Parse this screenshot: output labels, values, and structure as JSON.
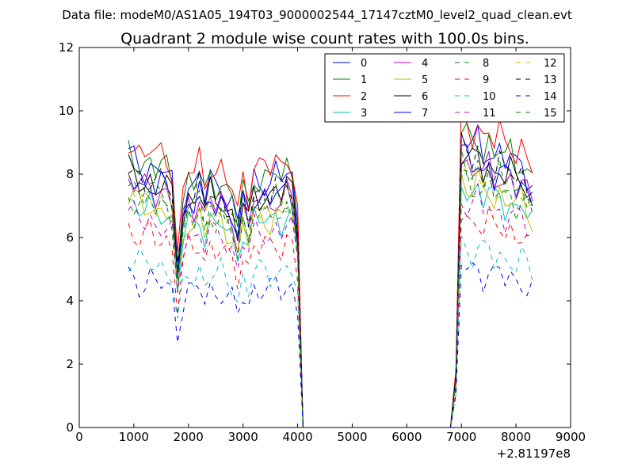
{
  "chart_data": {
    "type": "line",
    "suptitle": "Data file: modeM0/AS1A05_194T03_9000002544_17147cztM0_level2_quad_clean.evt",
    "title": "Quadrant 2 module wise count rates with 100.0s bins.",
    "xlabel": "",
    "ylabel": "",
    "x_offset_label": "+2.81197e8",
    "xlim": [
      0,
      9000
    ],
    "ylim": [
      0,
      12
    ],
    "xticks": [
      0,
      1000,
      2000,
      3000,
      4000,
      5000,
      6000,
      7000,
      8000,
      9000
    ],
    "yticks": [
      0,
      2,
      4,
      6,
      8,
      10,
      12
    ],
    "x_tick_labels": [
      "0",
      "1000",
      "2000",
      "3000",
      "4000",
      "5000",
      "6000",
      "7000",
      "8000",
      "9000"
    ],
    "y_tick_labels": [
      "0",
      "2",
      "4",
      "6",
      "8",
      "10",
      "12"
    ],
    "grid": false,
    "legend_position": "top-right",
    "legend_columns": 4,
    "x": [
      900,
      1000,
      1100,
      1200,
      1300,
      1400,
      1500,
      1600,
      1700,
      1800,
      1900,
      2000,
      2100,
      2200,
      2300,
      2400,
      2500,
      2600,
      2700,
      2800,
      2900,
      3000,
      3100,
      3200,
      3300,
      3400,
      3500,
      3600,
      3700,
      3800,
      3900,
      4000,
      4100,
      4200,
      4300,
      4400,
      4500,
      4600,
      4700,
      4800,
      4900,
      5000,
      5100,
      5200,
      5300,
      5400,
      5500,
      5600,
      5700,
      5800,
      5900,
      6000,
      6100,
      6200,
      6300,
      6400,
      6500,
      6600,
      6700,
      6800,
      6900,
      7000,
      7100,
      7200,
      7300,
      7400,
      7500,
      7600,
      7700,
      7800,
      7900,
      8000,
      8100,
      8200,
      8300
    ],
    "profile": [
      1.0,
      0.98,
      0.96,
      0.95,
      0.97,
      0.93,
      0.95,
      0.94,
      0.9,
      0.6,
      0.82,
      0.9,
      0.87,
      0.93,
      0.84,
      0.92,
      0.88,
      0.9,
      0.85,
      0.83,
      0.74,
      0.88,
      0.8,
      0.92,
      0.9,
      0.91,
      0.89,
      0.93,
      0.9,
      0.95,
      0.92,
      0.75,
      0.0,
      0.0,
      0.0,
      0.0,
      0.0,
      0.0,
      0.0,
      0.0,
      0.0,
      0.0,
      0.0,
      0.0,
      0.0,
      0.0,
      0.0,
      0.0,
      0.0,
      0.0,
      0.0,
      0.0,
      0.0,
      0.0,
      0.0,
      0.0,
      0.0,
      0.0,
      0.0,
      0.0,
      0.2,
      1.08,
      1.05,
      1.02,
      1.06,
      1.0,
      1.04,
      0.98,
      1.02,
      0.97,
      1.0,
      0.95,
      0.98,
      0.93,
      0.9
    ],
    "series": [
      {
        "name": "0",
        "color": "#0000ff",
        "dash": "solid",
        "level": 8.6
      },
      {
        "name": "1",
        "color": "#008000",
        "dash": "solid",
        "level": 8.7
      },
      {
        "name": "2",
        "color": "#ff0000",
        "dash": "solid",
        "level": 9.1
      },
      {
        "name": "3",
        "color": "#00bfbf",
        "dash": "solid",
        "level": 7.2
      },
      {
        "name": "4",
        "color": "#bf00bf",
        "dash": "solid",
        "level": 7.9
      },
      {
        "name": "5",
        "color": "#bfbf00",
        "dash": "solid",
        "level": 7.3
      },
      {
        "name": "6",
        "color": "#000000",
        "dash": "solid",
        "level": 8.1
      },
      {
        "name": "7",
        "color": "#0000ff",
        "dash": "solid",
        "level": 8.0
      },
      {
        "name": "8",
        "color": "#008000",
        "dash": "dashed",
        "level": 7.8
      },
      {
        "name": "9",
        "color": "#ff0000",
        "dash": "dashed",
        "level": 6.3
      },
      {
        "name": "10",
        "color": "#00bfbf",
        "dash": "dashed",
        "level": 5.4
      },
      {
        "name": "11",
        "color": "#bf00bf",
        "dash": "dashed",
        "level": 6.8
      },
      {
        "name": "12",
        "color": "#bfbf00",
        "dash": "dashed",
        "level": 7.6
      },
      {
        "name": "13",
        "color": "#000000",
        "dash": "dashed",
        "level": 8.2
      },
      {
        "name": "14",
        "color": "#0000ff",
        "dash": "dashed",
        "level": 4.8
      },
      {
        "name": "15",
        "color": "#008000",
        "dash": "dashed",
        "level": 7.4
      }
    ]
  }
}
